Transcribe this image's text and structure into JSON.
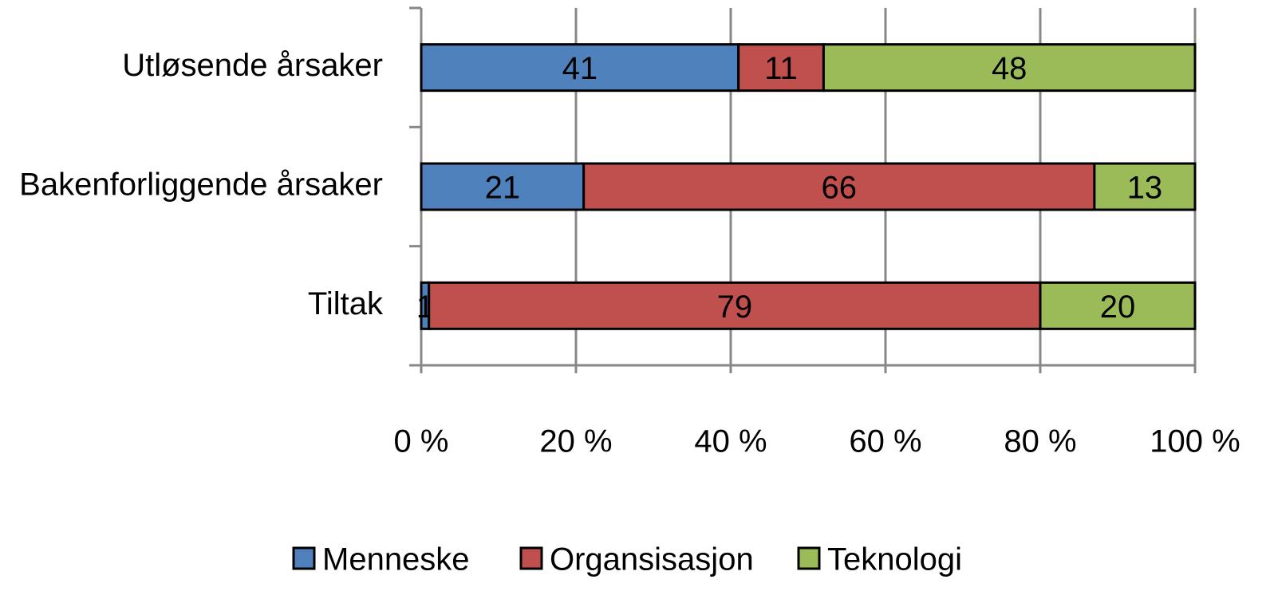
{
  "chart_data": {
    "type": "stacked-bar-horizontal",
    "categories": [
      "Utløsende årsaker",
      "Bakenforliggende årsaker",
      "Tiltak"
    ],
    "series": [
      {
        "name": "Menneske",
        "color": "#4f81bd",
        "values": [
          41,
          21,
          1
        ]
      },
      {
        "name": "Organsisasjon",
        "color": "#c0504d",
        "values": [
          11,
          66,
          79
        ]
      },
      {
        "name": "Teknologi",
        "color": "#9bbb59",
        "values": [
          48,
          13,
          20
        ]
      }
    ],
    "xlim": [
      0,
      100
    ],
    "xticks": [
      {
        "value": 0,
        "label": "0 %"
      },
      {
        "value": 20,
        "label": "20 %"
      },
      {
        "value": 40,
        "label": "40 %"
      },
      {
        "value": 60,
        "label": "60 %"
      },
      {
        "value": 80,
        "label": "80 %"
      },
      {
        "value": 100,
        "label": "100 %"
      }
    ],
    "grid": true,
    "legend": "bottom"
  }
}
